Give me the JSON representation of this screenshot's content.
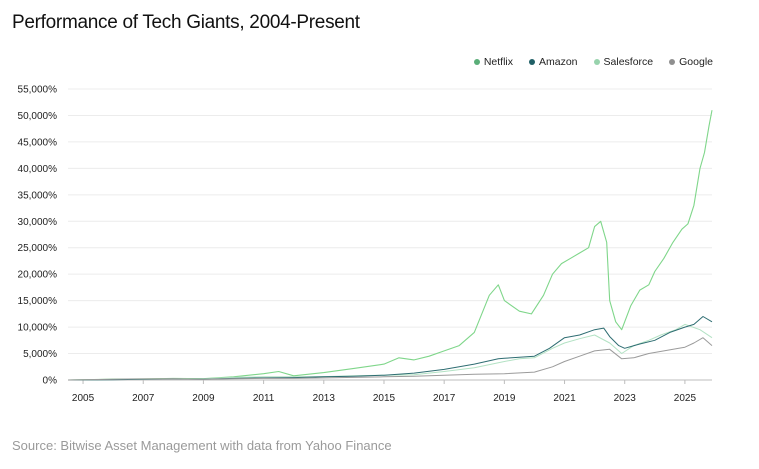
{
  "chart_data": {
    "type": "line",
    "title": "Performance of Tech Giants, 2004-Present",
    "source": "Source: Bitwise Asset Management with data from Yahoo Finance",
    "xlabel": "",
    "ylabel": "",
    "xlim": [
      2004.5,
      2025.9
    ],
    "ylim": [
      0,
      55000
    ],
    "yticks": [
      0,
      5000,
      10000,
      15000,
      20000,
      25000,
      30000,
      35000,
      40000,
      45000,
      50000,
      55000
    ],
    "ytick_labels": [
      "0%",
      "5,000%",
      "10,000%",
      "15,000%",
      "20,000%",
      "25,000%",
      "30,000%",
      "35,000%",
      "40,000%",
      "45,000%",
      "50,000%",
      "55,000%"
    ],
    "xticks": [
      2005,
      2007,
      2009,
      2011,
      2013,
      2015,
      2017,
      2019,
      2021,
      2023,
      2025
    ],
    "xtick_labels": [
      "2005",
      "2007",
      "2009",
      "2011",
      "2013",
      "2015",
      "2017",
      "2019",
      "2021",
      "2023",
      "2025"
    ],
    "grid": true,
    "legend_position": "top-right",
    "series": [
      {
        "name": "Netflix",
        "color": "#7fd68a",
        "legend_color": "#5aae78",
        "x": [
          2004.5,
          2006.0,
          2007.0,
          2008.0,
          2009.0,
          2010.0,
          2011.0,
          2011.5,
          2012.0,
          2013.0,
          2014.0,
          2015.0,
          2015.5,
          2016.0,
          2016.5,
          2017.0,
          2017.5,
          2018.0,
          2018.5,
          2018.8,
          2019.0,
          2019.5,
          2019.9,
          2020.3,
          2020.6,
          2020.9,
          2021.2,
          2021.5,
          2021.8,
          2022.0,
          2022.2,
          2022.4,
          2022.5,
          2022.7,
          2022.9,
          2023.2,
          2023.5,
          2023.8,
          2024.0,
          2024.3,
          2024.6,
          2024.9,
          2025.1,
          2025.3,
          2025.5,
          2025.65,
          2025.8,
          2025.9
        ],
        "values": [
          0,
          150,
          200,
          300,
          250,
          600,
          1200,
          1600,
          800,
          1400,
          2200,
          3000,
          4200,
          3800,
          4500,
          5500,
          6500,
          9000,
          16000,
          18000,
          15000,
          13000,
          12500,
          16000,
          20000,
          22000,
          23000,
          24000,
          25000,
          29000,
          30000,
          26000,
          15000,
          11000,
          9500,
          14000,
          17000,
          18000,
          20500,
          23000,
          26000,
          28500,
          29500,
          33000,
          40000,
          43000,
          48000,
          51000
        ]
      },
      {
        "name": "Amazon",
        "color": "#2e6d72",
        "legend_color": "#205f66",
        "x": [
          2004.5,
          2006.0,
          2007.0,
          2008.0,
          2009.0,
          2010.0,
          2011.0,
          2012.0,
          2013.0,
          2014.0,
          2015.0,
          2016.0,
          2017.0,
          2018.0,
          2018.8,
          2019.0,
          2019.5,
          2020.0,
          2020.5,
          2021.0,
          2021.5,
          2022.0,
          2022.3,
          2022.5,
          2022.8,
          2023.0,
          2023.5,
          2024.0,
          2024.5,
          2025.0,
          2025.3,
          2025.6,
          2025.9
        ],
        "values": [
          0,
          50,
          150,
          200,
          150,
          300,
          400,
          450,
          600,
          700,
          900,
          1300,
          2000,
          3000,
          4000,
          4100,
          4300,
          4500,
          6000,
          8000,
          8500,
          9500,
          9800,
          8200,
          6500,
          6000,
          6800,
          7500,
          9000,
          10000,
          10500,
          12000,
          11000
        ]
      },
      {
        "name": "Salesforce",
        "color": "#b3e2c4",
        "legend_color": "#98d3ad",
        "x": [
          2004.5,
          2006.0,
          2007.0,
          2008.0,
          2009.0,
          2010.0,
          2011.0,
          2012.0,
          2013.0,
          2014.0,
          2015.0,
          2016.0,
          2017.0,
          2018.0,
          2019.0,
          2019.5,
          2020.0,
          2020.6,
          2021.0,
          2021.5,
          2022.0,
          2022.5,
          2022.9,
          2023.3,
          2023.8,
          2024.2,
          2024.7,
          2025.0,
          2025.5,
          2025.9
        ],
        "values": [
          0,
          100,
          150,
          250,
          200,
          500,
          600,
          600,
          650,
          800,
          900,
          1000,
          1600,
          2300,
          3500,
          4000,
          4200,
          6000,
          7000,
          7800,
          8500,
          7000,
          5000,
          6500,
          7500,
          8500,
          9500,
          10500,
          9500,
          8000
        ]
      },
      {
        "name": "Google",
        "color": "#9b9b9b",
        "legend_color": "#8f8f8f",
        "x": [
          2004.5,
          2006.0,
          2007.0,
          2008.0,
          2009.0,
          2010.0,
          2011.0,
          2012.0,
          2013.0,
          2014.0,
          2015.0,
          2016.0,
          2017.0,
          2018.0,
          2019.0,
          2020.0,
          2020.6,
          2021.0,
          2021.5,
          2022.0,
          2022.5,
          2022.9,
          2023.3,
          2023.8,
          2024.3,
          2024.8,
          2025.0,
          2025.3,
          2025.6,
          2025.9
        ],
        "values": [
          0,
          150,
          200,
          250,
          150,
          250,
          300,
          300,
          400,
          500,
          600,
          700,
          900,
          1100,
          1200,
          1500,
          2500,
          3500,
          4500,
          5500,
          5800,
          4000,
          4200,
          5000,
          5500,
          6000,
          6200,
          7000,
          8000,
          6500
        ]
      }
    ]
  }
}
